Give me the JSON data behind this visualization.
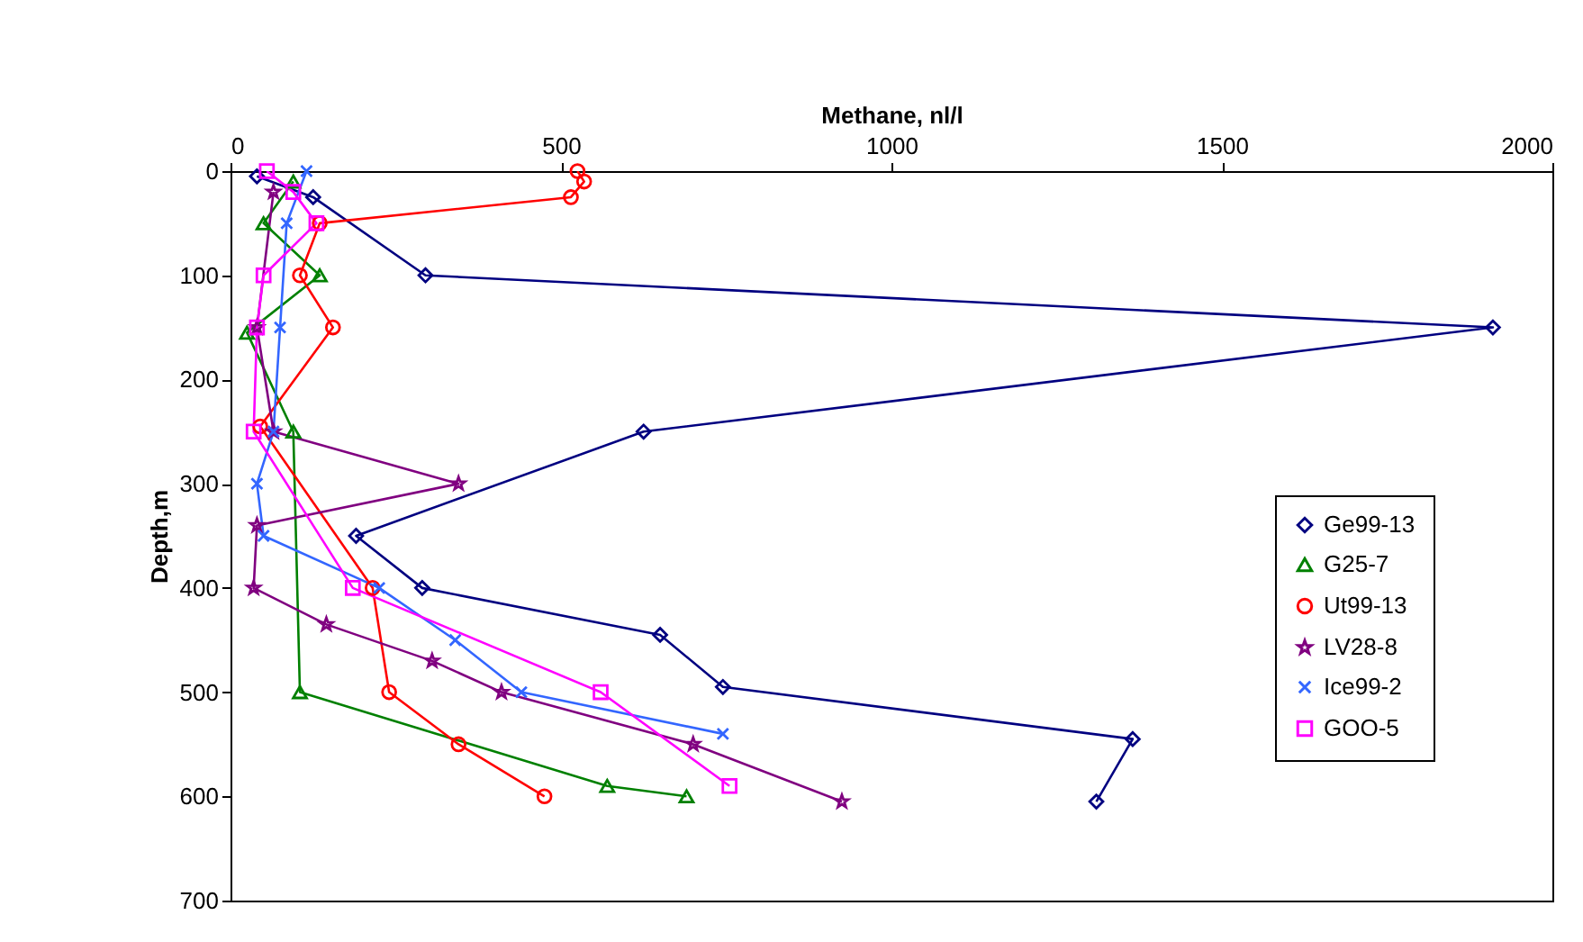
{
  "chart_data": {
    "type": "line",
    "xlabel": "Methane, nl/l",
    "ylabel": "Depth,m",
    "xlim": [
      0,
      2000
    ],
    "xticks": [
      0,
      500,
      1000,
      1500,
      2000
    ],
    "ylim": [
      700,
      0
    ],
    "yticks": [
      0,
      100,
      200,
      300,
      400,
      500,
      600,
      700
    ],
    "grid": false,
    "legend": "right",
    "series": [
      {
        "name": "Ge99-13",
        "color": "#000080",
        "marker": "diamond",
        "x": [
          40,
          125,
          295,
          1910,
          625,
          190,
          290,
          650,
          745,
          1365,
          1310
        ],
        "values": [
          5,
          25,
          100,
          150,
          250,
          350,
          400,
          445,
          495,
          545,
          605
        ]
      },
      {
        "name": "G25-7",
        "color": "#008000",
        "marker": "triangle",
        "x": [
          95,
          50,
          135,
          25,
          95,
          105,
          570,
          690
        ],
        "values": [
          10,
          50,
          100,
          155,
          250,
          500,
          590,
          600
        ]
      },
      {
        "name": "Ut99-13",
        "color": "#ff0000",
        "marker": "circle",
        "x": [
          525,
          535,
          515,
          135,
          105,
          155,
          45,
          215,
          240,
          345,
          475
        ],
        "values": [
          0,
          10,
          25,
          50,
          100,
          150,
          245,
          400,
          500,
          550,
          600
        ]
      },
      {
        "name": "LV28-8",
        "color": "#800080",
        "marker": "star",
        "x": [
          65,
          40,
          65,
          345,
          40,
          35,
          145,
          305,
          410,
          700,
          925
        ],
        "values": [
          20,
          150,
          250,
          300,
          340,
          400,
          435,
          470,
          500,
          550,
          605
        ]
      },
      {
        "name": "Ice99-2",
        "color": "#3366ff",
        "marker": "cross",
        "x": [
          115,
          85,
          75,
          65,
          40,
          50,
          225,
          340,
          440,
          745
        ],
        "values": [
          0,
          50,
          150,
          250,
          300,
          350,
          400,
          450,
          500,
          540
        ]
      },
      {
        "name": "GOO-5",
        "color": "#ff00ff",
        "marker": "square",
        "x": [
          55,
          95,
          130,
          50,
          40,
          35,
          185,
          560,
          755
        ],
        "values": [
          0,
          20,
          50,
          100,
          150,
          250,
          400,
          500,
          590
        ]
      }
    ]
  }
}
